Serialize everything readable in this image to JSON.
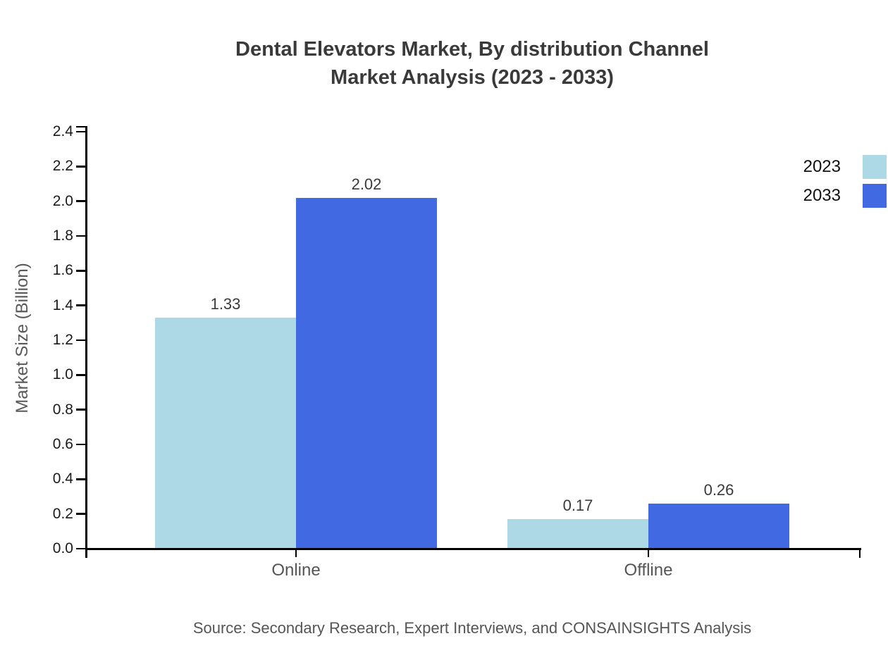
{
  "page": {
    "title_line1": "Dental Elevators Market, By distribution Channel",
    "title_line2": "Market Analysis (2023 - 2033)",
    "source_note": "Source: Secondary Research, Expert Interviews, and CONSAINSIGHTS Analysis"
  },
  "chart_data": {
    "type": "bar",
    "title": "Dental Elevators Market, By distribution Channel Market Analysis (2023 - 2033)",
    "categories": [
      "Online",
      "Offline"
    ],
    "series": [
      {
        "name": "2023",
        "color": "#ADD8E6",
        "values": [
          1.33,
          0.17
        ]
      },
      {
        "name": "2033",
        "color": "#4169E1",
        "values": [
          2.02,
          0.26
        ]
      }
    ],
    "value_labels": [
      [
        "1.33",
        "0.17"
      ],
      [
        "2.02",
        "0.26"
      ]
    ],
    "xlabel": "",
    "ylabel": "Market Size (Billion)",
    "ylim": [
      0.0,
      2.4
    ],
    "ytick_step": 0.2,
    "ytick_labels": [
      "0.0",
      "0.2",
      "0.4",
      "0.6",
      "0.8",
      "1.0",
      "1.2",
      "1.4",
      "1.6",
      "1.8",
      "2.0",
      "2.2",
      "2.4"
    ],
    "grid": false,
    "legend_position": "top-right",
    "axis_color": "#000000",
    "colors": {
      "series_2023": "#ADD8E6",
      "series_2033": "#4169E1",
      "title_text": "#3a3a3a",
      "tick_label_text": "#1a1a1a",
      "category_label_text": "#555555",
      "value_label_text": "#3a3a3a",
      "ylabel_text": "#595959",
      "source_text": "#555555",
      "legend_label_text": "#111111"
    }
  }
}
